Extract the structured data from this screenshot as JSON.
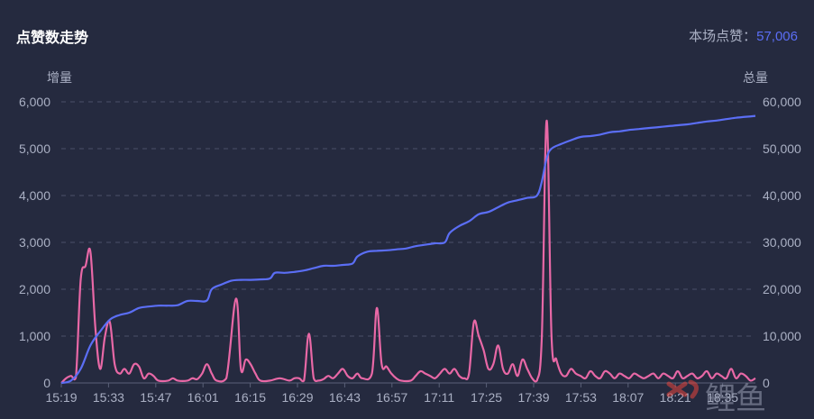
{
  "header": {
    "title": "点赞数走势",
    "total_label": "本场点赞：",
    "total_value": "57,006"
  },
  "watermark": "鲤鱼",
  "colors": {
    "background": "#252a3f",
    "increment_line": "#e868a6",
    "total_line": "#5b6ef5",
    "grid": "#4a5068",
    "axis_text": "#aab0c4",
    "total_value": "#5b6ef5"
  },
  "chart_data": {
    "type": "line",
    "title": "点赞数走势",
    "left_axis_label": "增量",
    "right_axis_label": "总量",
    "left_ylim": [
      0,
      6000
    ],
    "right_ylim": [
      0,
      60000
    ],
    "left_ticks": [
      "0",
      "1,000",
      "2,000",
      "3,000",
      "4,000",
      "5,000",
      "6,000"
    ],
    "right_ticks": [
      "0",
      "10,000",
      "20,000",
      "30,000",
      "40,000",
      "50,000",
      "60,000"
    ],
    "x_ticks": [
      "15:19",
      "15:33",
      "15:47",
      "16:01",
      "16:15",
      "16:29",
      "16:43",
      "16:57",
      "17:11",
      "17:25",
      "17:39",
      "17:53",
      "18:07",
      "18:21",
      "18:35"
    ],
    "grid": "horizontal-dashed",
    "series": [
      {
        "name": "增量",
        "axis": "left",
        "color": "#e868a6",
        "points": [
          [
            0,
            0
          ],
          [
            1,
            100
          ],
          [
            2,
            150
          ],
          [
            3,
            120
          ],
          [
            4,
            2200
          ],
          [
            5,
            2500
          ],
          [
            6,
            2800
          ],
          [
            7,
            1200
          ],
          [
            8,
            300
          ],
          [
            9,
            1000
          ],
          [
            10,
            1300
          ],
          [
            11,
            400
          ],
          [
            12,
            200
          ],
          [
            13,
            300
          ],
          [
            14,
            200
          ],
          [
            15,
            400
          ],
          [
            16,
            350
          ],
          [
            17,
            100
          ],
          [
            18,
            200
          ],
          [
            19,
            150
          ],
          [
            20,
            50
          ],
          [
            22,
            50
          ],
          [
            23,
            100
          ],
          [
            24,
            50
          ],
          [
            26,
            50
          ],
          [
            27,
            100
          ],
          [
            28,
            80
          ],
          [
            29,
            200
          ],
          [
            30,
            400
          ],
          [
            31,
            200
          ],
          [
            32,
            50
          ],
          [
            34,
            100
          ],
          [
            36,
            1800
          ],
          [
            37,
            300
          ],
          [
            38,
            500
          ],
          [
            39,
            400
          ],
          [
            40,
            200
          ],
          [
            41,
            50
          ],
          [
            43,
            50
          ],
          [
            45,
            100
          ],
          [
            47,
            50
          ],
          [
            48,
            100
          ],
          [
            49,
            100
          ],
          [
            50,
            50
          ],
          [
            51,
            1050
          ],
          [
            52,
            100
          ],
          [
            53,
            50
          ],
          [
            54,
            80
          ],
          [
            55,
            150
          ],
          [
            56,
            100
          ],
          [
            57,
            200
          ],
          [
            58,
            300
          ],
          [
            59,
            150
          ],
          [
            60,
            100
          ],
          [
            61,
            200
          ],
          [
            62,
            100
          ],
          [
            64,
            200
          ],
          [
            65,
            1600
          ],
          [
            66,
            400
          ],
          [
            67,
            350
          ],
          [
            68,
            200
          ],
          [
            69,
            100
          ],
          [
            70,
            50
          ],
          [
            72,
            50
          ],
          [
            73,
            150
          ],
          [
            74,
            250
          ],
          [
            75,
            200
          ],
          [
            76,
            150
          ],
          [
            77,
            100
          ],
          [
            78,
            200
          ],
          [
            79,
            300
          ],
          [
            80,
            200
          ],
          [
            81,
            300
          ],
          [
            82,
            150
          ],
          [
            83,
            100
          ],
          [
            84,
            200
          ],
          [
            85,
            1300
          ],
          [
            86,
            1000
          ],
          [
            87,
            700
          ],
          [
            88,
            300
          ],
          [
            89,
            400
          ],
          [
            90,
            800
          ],
          [
            91,
            300
          ],
          [
            92,
            200
          ],
          [
            93,
            400
          ],
          [
            94,
            150
          ],
          [
            95,
            500
          ],
          [
            96,
            300
          ],
          [
            97,
            100
          ],
          [
            98,
            50
          ],
          [
            99,
            1000
          ],
          [
            100,
            5600
          ],
          [
            101,
            1000
          ],
          [
            102,
            500
          ],
          [
            103,
            200
          ],
          [
            104,
            150
          ],
          [
            105,
            300
          ],
          [
            106,
            200
          ],
          [
            107,
            150
          ],
          [
            108,
            100
          ],
          [
            109,
            250
          ],
          [
            110,
            150
          ],
          [
            111,
            100
          ],
          [
            112,
            250
          ],
          [
            113,
            200
          ],
          [
            114,
            100
          ],
          [
            115,
            200
          ],
          [
            116,
            150
          ],
          [
            117,
            100
          ],
          [
            118,
            200
          ],
          [
            119,
            150
          ],
          [
            120,
            100
          ],
          [
            121,
            150
          ],
          [
            122,
            200
          ],
          [
            123,
            100
          ],
          [
            124,
            200
          ],
          [
            125,
            150
          ],
          [
            126,
            100
          ],
          [
            127,
            250
          ],
          [
            128,
            100
          ],
          [
            129,
            150
          ],
          [
            130,
            200
          ],
          [
            131,
            100
          ],
          [
            132,
            150
          ],
          [
            133,
            250
          ],
          [
            134,
            100
          ],
          [
            135,
            200
          ],
          [
            136,
            150
          ],
          [
            137,
            100
          ],
          [
            138,
            300
          ],
          [
            139,
            100
          ],
          [
            140,
            200
          ],
          [
            141,
            150
          ],
          [
            142,
            50
          ],
          [
            143,
            100
          ]
        ]
      },
      {
        "name": "总量",
        "axis": "right",
        "color": "#5b6ef5",
        "points": [
          [
            0,
            0
          ],
          [
            2,
            500
          ],
          [
            4,
            3000
          ],
          [
            6,
            8000
          ],
          [
            8,
            11000
          ],
          [
            10,
            13500
          ],
          [
            12,
            14500
          ],
          [
            14,
            15000
          ],
          [
            16,
            16000
          ],
          [
            18,
            16300
          ],
          [
            20,
            16500
          ],
          [
            22,
            16500
          ],
          [
            24,
            16600
          ],
          [
            26,
            17500
          ],
          [
            28,
            17500
          ],
          [
            30,
            17600
          ],
          [
            31,
            20000
          ],
          [
            33,
            21000
          ],
          [
            35,
            21800
          ],
          [
            37,
            22000
          ],
          [
            39,
            22000
          ],
          [
            41,
            22100
          ],
          [
            43,
            22300
          ],
          [
            44,
            23500
          ],
          [
            46,
            23500
          ],
          [
            48,
            23700
          ],
          [
            50,
            24000
          ],
          [
            52,
            24500
          ],
          [
            54,
            25000
          ],
          [
            56,
            25000
          ],
          [
            58,
            25200
          ],
          [
            60,
            25500
          ],
          [
            61,
            27000
          ],
          [
            63,
            28000
          ],
          [
            65,
            28200
          ],
          [
            67,
            28300
          ],
          [
            69,
            28500
          ],
          [
            71,
            28700
          ],
          [
            73,
            29200
          ],
          [
            75,
            29500
          ],
          [
            77,
            29800
          ],
          [
            79,
            30000
          ],
          [
            80,
            32000
          ],
          [
            82,
            33500
          ],
          [
            84,
            34500
          ],
          [
            86,
            36000
          ],
          [
            88,
            36500
          ],
          [
            90,
            37500
          ],
          [
            92,
            38500
          ],
          [
            94,
            39000
          ],
          [
            96,
            39500
          ],
          [
            98,
            40000
          ],
          [
            99,
            43000
          ],
          [
            100,
            48000
          ],
          [
            101,
            50000
          ],
          [
            103,
            51000
          ],
          [
            105,
            51800
          ],
          [
            107,
            52500
          ],
          [
            109,
            52700
          ],
          [
            111,
            53000
          ],
          [
            113,
            53500
          ],
          [
            115,
            53700
          ],
          [
            117,
            54000
          ],
          [
            119,
            54200
          ],
          [
            121,
            54400
          ],
          [
            123,
            54600
          ],
          [
            125,
            54800
          ],
          [
            127,
            55000
          ],
          [
            129,
            55200
          ],
          [
            131,
            55500
          ],
          [
            133,
            55800
          ],
          [
            135,
            56000
          ],
          [
            137,
            56300
          ],
          [
            139,
            56600
          ],
          [
            141,
            56800
          ],
          [
            143,
            57006
          ]
        ]
      }
    ]
  }
}
